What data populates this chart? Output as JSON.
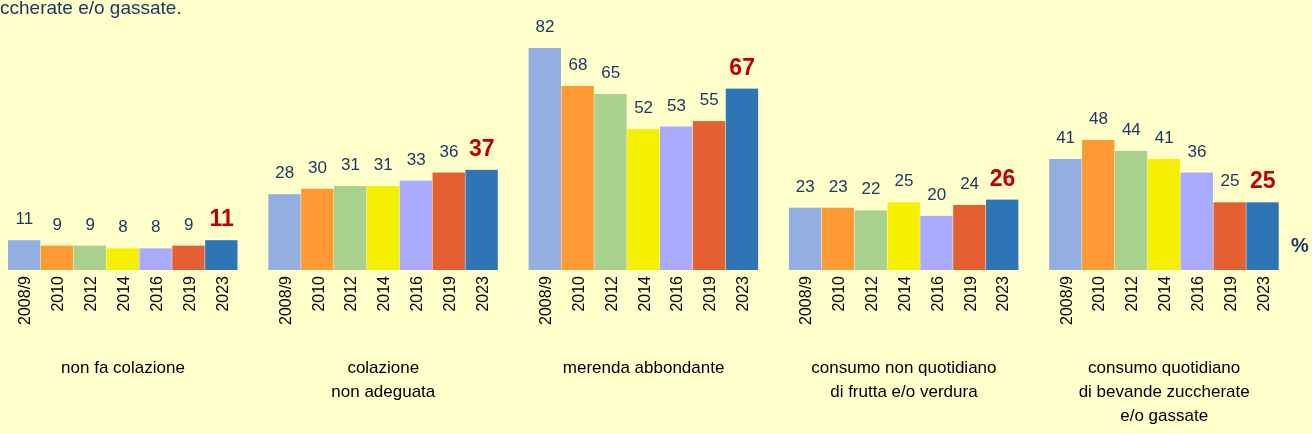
{
  "chart_data": [
    {
      "type": "bar",
      "xlabel": "non fa colazione",
      "categories": [
        "2008/9",
        "2010",
        "2012",
        "2014",
        "2016",
        "2019",
        "2023"
      ],
      "values": [
        11,
        9,
        9,
        8,
        8,
        9,
        11
      ],
      "colors": [
        "#93aee0",
        "#ff9933",
        "#a9d18e",
        "#f5ef00",
        "#aaaaff",
        "#e46032",
        "#2e75b6"
      ],
      "data_labels": true,
      "annotations": [
        "ccherate e/o gassate."
      ]
    },
    {
      "type": "bar",
      "xlabel": "colazione\nnon adeguata",
      "categories": [
        "2008/9",
        "2010",
        "2012",
        "2014",
        "2016",
        "2019",
        "2023"
      ],
      "values": [
        28,
        30,
        31,
        31,
        33,
        36,
        37
      ],
      "colors": [
        "#93aee0",
        "#ff9933",
        "#a9d18e",
        "#f5ef00",
        "#aaaaff",
        "#e46032",
        "#2e75b6"
      ],
      "data_labels": true
    },
    {
      "type": "bar",
      "xlabel": "merenda abbondante",
      "categories": [
        "2008/9",
        "2010",
        "2012",
        "2014",
        "2016",
        "2019",
        "2023"
      ],
      "values": [
        82,
        68,
        65,
        52,
        53,
        55,
        67
      ],
      "colors": [
        "#93aee0",
        "#ff9933",
        "#a9d18e",
        "#f5ef00",
        "#aaaaff",
        "#e46032",
        "#2e75b6"
      ],
      "data_labels": true
    },
    {
      "type": "bar",
      "xlabel": "consumo non quotidiano\ndi frutta e/o verdura",
      "categories": [
        "2008/9",
        "2010",
        "2012",
        "2014",
        "2016",
        "2019",
        "2023"
      ],
      "values": [
        23,
        23,
        22,
        25,
        20,
        24,
        26
      ],
      "colors": [
        "#93aee0",
        "#ff9933",
        "#a9d18e",
        "#f5ef00",
        "#aaaaff",
        "#e46032",
        "#2e75b6"
      ],
      "data_labels": true
    },
    {
      "type": "bar",
      "xlabel": "consumo quotidiano\ndi bevande zuccherate\ne/o gassate",
      "categories": [
        "2008/9",
        "2010",
        "2012",
        "2014",
        "2016",
        "2019",
        "2023"
      ],
      "values": [
        41,
        48,
        44,
        41,
        36,
        25,
        25
      ],
      "colors": [
        "#93aee0",
        "#ff9933",
        "#a9d18e",
        "#f5ef00",
        "#aaaaff",
        "#e46032",
        "#2e75b6"
      ],
      "data_labels": true,
      "annotations": [
        "%"
      ]
    }
  ]
}
